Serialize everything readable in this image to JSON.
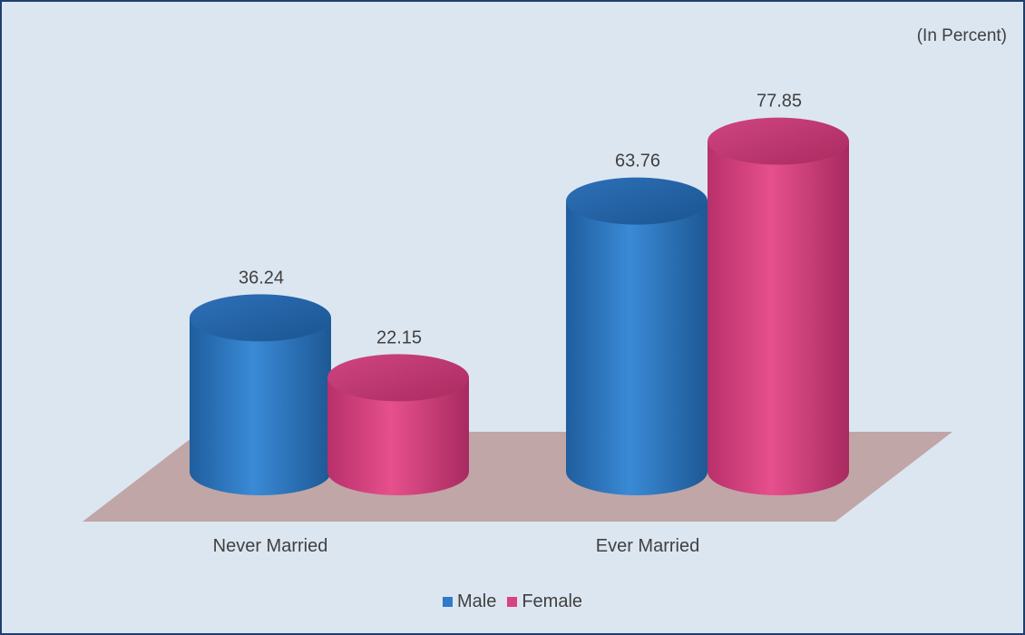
{
  "chart_data": {
    "type": "bar",
    "unit_note": "(In Percent)",
    "categories": [
      "Never Married",
      "Ever Married"
    ],
    "series": [
      {
        "name": "Male",
        "values": [
          36.24,
          63.76
        ],
        "color": "#2f7ac9"
      },
      {
        "name": "Female",
        "values": [
          22.15,
          77.85
        ],
        "color": "#d8447f"
      }
    ],
    "ylim": [
      0,
      100
    ],
    "grid": false,
    "legend": "bottom",
    "floor_color": "#c0a6a6"
  }
}
